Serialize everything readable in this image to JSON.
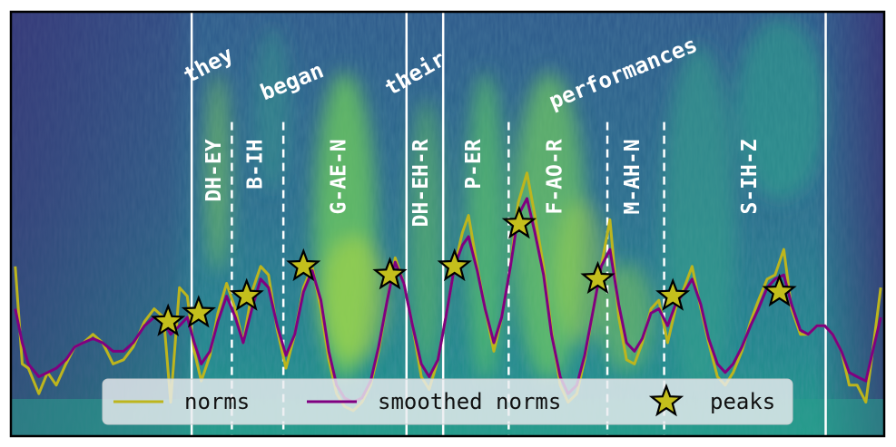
{
  "chart_data": {
    "type": "line",
    "title": "",
    "xlabel": "",
    "ylabel": "",
    "xlim": [
      0,
      100
    ],
    "ylim": [
      0,
      100
    ],
    "grid": false,
    "legend_position": "bottom-center",
    "colors": {
      "norms": "#bdb51d",
      "smoothed": "#800080",
      "peak_fill": "#c4bf1c",
      "peak_edge": "#000000",
      "boundary_solid": "#ffffff",
      "boundary_dashed": "#ffffff"
    },
    "word_boundaries": [
      20.7,
      45.3,
      49.5,
      93.3
    ],
    "syllable_boundaries": [
      25.3,
      31.2,
      57.0,
      68.3,
      74.8
    ],
    "words": [
      {
        "text": "they",
        "x": 23.0,
        "y": 86,
        "angle": -28
      },
      {
        "text": "began",
        "x": 32.5,
        "y": 82,
        "angle": -22
      },
      {
        "text": "their",
        "x": 46.7,
        "y": 84,
        "angle": -30
      },
      {
        "text": "performances",
        "x": 70.4,
        "y": 84,
        "angle": -22
      }
    ],
    "syllables": [
      {
        "text": "DH-EY",
        "x": 23.3
      },
      {
        "text": "B-IH",
        "x": 28.0
      },
      {
        "text": "G-AE-N",
        "x": 37.6
      },
      {
        "text": "DH-EH-R",
        "x": 47.0
      },
      {
        "text": "P-ER",
        "x": 53.0
      },
      {
        "text": "F-AO-R",
        "x": 62.3
      },
      {
        "text": "M-AH-N",
        "x": 71.2
      },
      {
        "text": "S-IH-Z",
        "x": 84.6
      }
    ],
    "series": [
      {
        "name": "norms",
        "x": [
          0.5,
          1.3,
          2.0,
          3.2,
          4.2,
          5.2,
          6.3,
          7.3,
          8.3,
          9.4,
          10.5,
          11.7,
          12.9,
          14.0,
          15.3,
          16.4,
          17.5,
          18.3,
          19.3,
          20.2,
          21.0,
          21.8,
          22.8,
          23.7,
          24.7,
          25.7,
          26.6,
          27.6,
          28.6,
          29.5,
          30.5,
          31.5,
          32.5,
          33.5,
          34.5,
          35.5,
          36.4,
          37.3,
          38.2,
          39.2,
          40.2,
          41.2,
          42.1,
          43.1,
          44.0,
          45.0,
          46.0,
          47.0,
          47.9,
          48.9,
          49.8,
          50.8,
          51.7,
          52.4,
          53.4,
          54.3,
          55.3,
          56.2,
          57.2,
          58.1,
          59.1,
          60.0,
          61.0,
          61.9,
          62.9,
          63.8,
          64.8,
          65.7,
          66.7,
          67.6,
          68.6,
          69.6,
          70.5,
          71.4,
          72.3,
          73.3,
          74.2,
          75.2,
          76.1,
          77.1,
          78.0,
          79.0,
          79.9,
          80.9,
          81.8,
          82.7,
          83.7,
          84.7,
          85.6,
          86.6,
          87.5,
          88.5,
          89.4,
          90.4,
          91.3,
          92.3,
          93.2,
          94.1,
          95.1,
          96.0,
          96.9,
          97.9,
          98.8,
          99.6
        ],
        "values": [
          40,
          17,
          16,
          10,
          15,
          12,
          17,
          21,
          22,
          24,
          22,
          17,
          18,
          21,
          27,
          30,
          28,
          8,
          35,
          33,
          20,
          13,
          19,
          29,
          36,
          30,
          22,
          34,
          40,
          38,
          25,
          16,
          24,
          35,
          40,
          30,
          18,
          10,
          7,
          6,
          8,
          12,
          20,
          32,
          42,
          36,
          26,
          14,
          11,
          18,
          28,
          40,
          48,
          52,
          40,
          30,
          20,
          28,
          40,
          55,
          62,
          52,
          40,
          25,
          12,
          8,
          10,
          18,
          30,
          40,
          51,
          28,
          18,
          17,
          22,
          30,
          32,
          22,
          30,
          35,
          40,
          30,
          22,
          14,
          12,
          15,
          20,
          27,
          32,
          37,
          38,
          44,
          30,
          24,
          24,
          26,
          26,
          24,
          20,
          12,
          12,
          8,
          22,
          35
        ]
      },
      {
        "name": "smoothed norms",
        "x": [
          0.5,
          1.3,
          2.0,
          3.2,
          4.2,
          5.2,
          6.3,
          7.3,
          8.3,
          9.4,
          10.5,
          11.7,
          12.9,
          14.0,
          15.3,
          16.4,
          17.5,
          18.3,
          19.3,
          20.2,
          21.0,
          21.8,
          22.8,
          23.7,
          24.7,
          25.7,
          26.6,
          27.6,
          28.6,
          29.5,
          30.5,
          31.5,
          32.5,
          33.5,
          34.5,
          35.5,
          36.4,
          37.3,
          38.2,
          39.2,
          40.2,
          41.2,
          42.1,
          43.1,
          44.0,
          45.0,
          46.0,
          47.0,
          47.9,
          48.9,
          49.8,
          50.8,
          51.7,
          52.4,
          53.4,
          54.3,
          55.3,
          56.2,
          57.2,
          58.1,
          59.1,
          60.0,
          61.0,
          61.9,
          62.9,
          63.8,
          64.8,
          65.7,
          66.7,
          67.6,
          68.6,
          69.6,
          70.5,
          71.4,
          72.3,
          73.3,
          74.2,
          75.2,
          76.1,
          77.1,
          78.0,
          79.0,
          79.9,
          80.9,
          81.8,
          82.7,
          83.7,
          84.7,
          85.6,
          86.6,
          87.5,
          88.5,
          89.4,
          90.4,
          91.3,
          92.3,
          93.2,
          94.1,
          95.1,
          96.0,
          96.9,
          97.9,
          98.8,
          99.6
        ],
        "values": [
          30,
          22,
          17,
          14,
          15,
          16,
          18,
          21,
          22,
          23,
          22,
          20,
          20,
          22,
          26,
          28,
          27,
          24,
          26,
          28,
          22,
          17,
          20,
          27,
          33,
          28,
          22,
          30,
          37,
          35,
          26,
          19,
          24,
          34,
          39,
          32,
          20,
          12,
          9,
          8,
          9,
          13,
          21,
          32,
          41,
          36,
          26,
          17,
          14,
          18,
          28,
          40,
          45,
          47,
          39,
          30,
          22,
          28,
          40,
          52,
          56,
          48,
          38,
          24,
          14,
          10,
          12,
          19,
          30,
          40,
          44,
          31,
          22,
          20,
          23,
          29,
          30,
          26,
          31,
          34,
          37,
          31,
          23,
          17,
          15,
          17,
          21,
          26,
          30,
          35,
          37,
          38,
          31,
          25,
          24,
          26,
          26,
          24,
          20,
          15,
          14,
          13,
          21,
          28
        ]
      }
    ],
    "peaks": {
      "name": "peaks",
      "x": [
        18.0,
        21.5,
        27.0,
        33.5,
        43.4,
        50.8,
        58.2,
        67.2,
        75.8,
        88.0
      ],
      "y": [
        27,
        29,
        33,
        40,
        38,
        40,
        50,
        37,
        33,
        34
      ]
    },
    "legend": {
      "entries": [
        "norms",
        "smoothed norms",
        "peaks"
      ]
    }
  }
}
